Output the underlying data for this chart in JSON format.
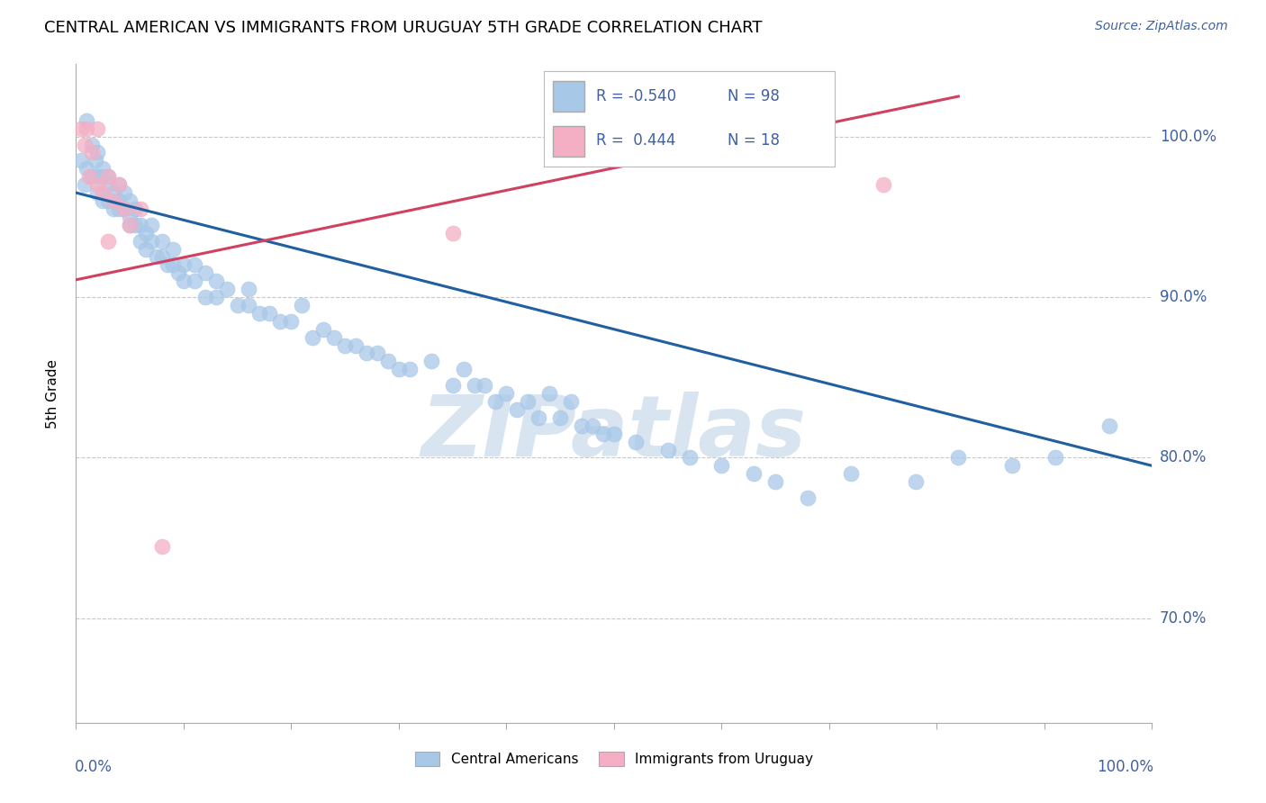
{
  "title": "CENTRAL AMERICAN VS IMMIGRANTS FROM URUGUAY 5TH GRADE CORRELATION CHART",
  "source_text": "Source: ZipAtlas.com",
  "ylabel": "5th Grade",
  "xlim": [
    0.0,
    1.0
  ],
  "ylim": [
    0.635,
    1.045
  ],
  "yticks": [
    0.7,
    0.8,
    0.9,
    1.0
  ],
  "ytick_labels": [
    "70.0%",
    "80.0%",
    "90.0%",
    "100.0%"
  ],
  "legend_R_blue": "-0.540",
  "legend_N_blue": "98",
  "legend_R_pink": "0.444",
  "legend_N_pink": "18",
  "blue_color": "#a8c8e8",
  "pink_color": "#f4afc4",
  "blue_line_color": "#2060a0",
  "pink_line_color": "#d04060",
  "text_color": "#4060a0",
  "title_color": "#000000",
  "watermark_color": "#d8e4f0",
  "blue_scatter_x": [
    0.005,
    0.008,
    0.01,
    0.01,
    0.015,
    0.015,
    0.018,
    0.02,
    0.02,
    0.02,
    0.025,
    0.025,
    0.025,
    0.03,
    0.03,
    0.03,
    0.035,
    0.035,
    0.04,
    0.04,
    0.04,
    0.045,
    0.045,
    0.05,
    0.05,
    0.05,
    0.055,
    0.055,
    0.06,
    0.06,
    0.065,
    0.065,
    0.07,
    0.07,
    0.075,
    0.08,
    0.08,
    0.085,
    0.09,
    0.09,
    0.095,
    0.1,
    0.1,
    0.11,
    0.11,
    0.12,
    0.12,
    0.13,
    0.13,
    0.14,
    0.15,
    0.16,
    0.16,
    0.17,
    0.18,
    0.19,
    0.2,
    0.21,
    0.22,
    0.23,
    0.24,
    0.25,
    0.26,
    0.27,
    0.28,
    0.29,
    0.3,
    0.31,
    0.33,
    0.35,
    0.36,
    0.37,
    0.38,
    0.39,
    0.4,
    0.41,
    0.42,
    0.43,
    0.44,
    0.45,
    0.46,
    0.47,
    0.48,
    0.49,
    0.5,
    0.52,
    0.55,
    0.57,
    0.6,
    0.63,
    0.65,
    0.68,
    0.72,
    0.78,
    0.82,
    0.87,
    0.91,
    0.96
  ],
  "blue_scatter_y": [
    0.985,
    0.97,
    1.01,
    0.98,
    0.975,
    0.995,
    0.985,
    0.975,
    0.965,
    0.99,
    0.975,
    0.96,
    0.98,
    0.97,
    0.96,
    0.975,
    0.965,
    0.955,
    0.96,
    0.97,
    0.955,
    0.955,
    0.965,
    0.95,
    0.96,
    0.945,
    0.955,
    0.945,
    0.945,
    0.935,
    0.94,
    0.93,
    0.935,
    0.945,
    0.925,
    0.935,
    0.925,
    0.92,
    0.93,
    0.92,
    0.915,
    0.92,
    0.91,
    0.91,
    0.92,
    0.9,
    0.915,
    0.91,
    0.9,
    0.905,
    0.895,
    0.895,
    0.905,
    0.89,
    0.89,
    0.885,
    0.885,
    0.895,
    0.875,
    0.88,
    0.875,
    0.87,
    0.87,
    0.865,
    0.865,
    0.86,
    0.855,
    0.855,
    0.86,
    0.845,
    0.855,
    0.845,
    0.845,
    0.835,
    0.84,
    0.83,
    0.835,
    0.825,
    0.84,
    0.825,
    0.835,
    0.82,
    0.82,
    0.815,
    0.815,
    0.81,
    0.805,
    0.8,
    0.795,
    0.79,
    0.785,
    0.775,
    0.79,
    0.785,
    0.8,
    0.795,
    0.8,
    0.82
  ],
  "pink_scatter_x": [
    0.005,
    0.008,
    0.01,
    0.012,
    0.015,
    0.02,
    0.02,
    0.025,
    0.03,
    0.035,
    0.04,
    0.045,
    0.05,
    0.06,
    0.08,
    0.03,
    0.35,
    0.75
  ],
  "pink_scatter_y": [
    1.005,
    0.995,
    1.005,
    0.975,
    0.99,
    0.97,
    1.005,
    0.965,
    0.975,
    0.96,
    0.97,
    0.955,
    0.945,
    0.955,
    0.745,
    0.935,
    0.94,
    0.97
  ],
  "blue_trend_x": [
    0.0,
    1.0
  ],
  "blue_trend_y": [
    0.965,
    0.795
  ],
  "pink_trend_x": [
    -0.02,
    0.82
  ],
  "pink_trend_y": [
    0.908,
    1.025
  ],
  "grid_color": "#c8c8c8",
  "spine_color": "#aaaaaa"
}
